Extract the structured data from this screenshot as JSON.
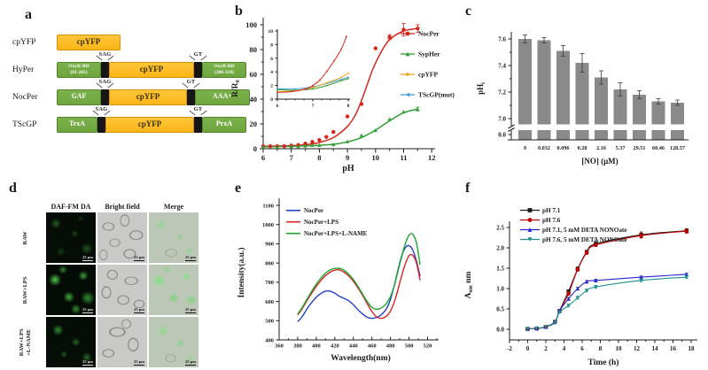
{
  "panels": {
    "a": {
      "letter": "a",
      "colors": {
        "yfp": "#f9b517",
        "yfp_border": "#d89200",
        "domain": "#6fa53f",
        "domain_border": "#55832c",
        "linker": "#161616"
      },
      "rows": [
        {
          "name": "cpYFP",
          "segments": [
            {
              "type": "yfp",
              "text": "cpYFP",
              "w": 72
            }
          ]
        },
        {
          "name": "HyPer",
          "segments": [
            {
              "type": "domain",
              "text": "OxyR-RD\n(81-205)",
              "w": 50,
              "small": true
            },
            {
              "type": "linker",
              "tag": "SAG"
            },
            {
              "type": "yfp",
              "text": "cpYFP",
              "w": 96
            },
            {
              "type": "linker",
              "tag": "GT"
            },
            {
              "type": "domain",
              "text": "OxyR-RD\n(206-310)",
              "w": 50,
              "small": true
            }
          ]
        },
        {
          "name": "NocPer",
          "segments": [
            {
              "type": "domain",
              "text": "GAF",
              "w": 50
            },
            {
              "type": "linker",
              "tag": "SAG"
            },
            {
              "type": "yfp",
              "text": "cpYFP",
              "w": 88
            },
            {
              "type": "linker",
              "tag": "GT"
            },
            {
              "type": "domain",
              "text": "AAA+",
              "w": 62
            }
          ]
        },
        {
          "name": "TScGP",
          "segments": [
            {
              "type": "domain",
              "text": "TrxA",
              "w": 46
            },
            {
              "type": "linker",
              "tag": "SAG"
            },
            {
              "type": "yfp",
              "text": "cpYFP",
              "w": 100
            },
            {
              "type": "linker",
              "tag": "GT"
            },
            {
              "type": "domain",
              "text": "PrxA",
              "w": 50
            }
          ]
        }
      ]
    },
    "b": {
      "letter": "b"
    },
    "c": {
      "letter": "c"
    },
    "d": {
      "letter": "d",
      "col_headers": [
        "DAF-FM DA",
        "Bright field",
        "Merge"
      ],
      "rows": [
        {
          "label": "RAW"
        },
        {
          "label": "RAW+LPS"
        },
        {
          "label": "RAW+LPS\n+L-NAME"
        }
      ],
      "scale_label": "25 μm"
    },
    "e": {
      "letter": "e"
    },
    "f": {
      "letter": "f"
    }
  },
  "chart_data": [
    {
      "id": "b",
      "type": "scatter",
      "xlabel": "pH",
      "ylabel": {
        "pre": "R/R",
        "sub": "0",
        "post": ""
      },
      "xlim": [
        6,
        12
      ],
      "ylim": [
        0,
        100
      ],
      "xticks": [
        6,
        7,
        8,
        9,
        10,
        11,
        12
      ],
      "yticks": [
        0,
        20,
        40,
        60,
        80,
        100
      ],
      "legend_position": "right-outside",
      "series": [
        {
          "name": "NocPer",
          "color": "#d6271d",
          "marker": "circle",
          "x": [
            6,
            6.25,
            6.5,
            6.75,
            7,
            7.25,
            7.5,
            7.75,
            8,
            8.25,
            8.5,
            9,
            9.5,
            10,
            10.5,
            11,
            11.5
          ],
          "y": [
            2,
            2,
            2,
            2,
            2.5,
            3,
            4.2,
            5.5,
            7,
            9.5,
            13.5,
            26,
            36,
            81,
            90,
            96,
            97
          ],
          "yerr": [
            0,
            0,
            0,
            0,
            0,
            0,
            0,
            0,
            0,
            0,
            0,
            0,
            0,
            0,
            2,
            5,
            3
          ],
          "fit": [
            [
              6,
              2
            ],
            [
              7,
              2.4
            ],
            [
              7.5,
              3.2
            ],
            [
              8,
              5
            ],
            [
              8.5,
              9
            ],
            [
              9,
              18
            ],
            [
              9.3,
              28
            ],
            [
              9.6,
              45
            ],
            [
              9.9,
              64
            ],
            [
              10.2,
              78
            ],
            [
              10.5,
              88
            ],
            [
              11,
              95
            ],
            [
              11.5,
              97
            ]
          ]
        },
        {
          "name": "SypHer",
          "color": "#2f9e33",
          "marker": "triangle-up",
          "x": [
            6,
            6.5,
            7,
            7.25,
            7.5,
            7.75,
            8,
            8.5,
            9,
            9.5,
            10,
            10.5,
            11,
            11.5
          ],
          "y": [
            1.5,
            1.5,
            2,
            2,
            2.5,
            3,
            3,
            3.5,
            6,
            11,
            15,
            24,
            30,
            32
          ],
          "yerr": [
            0,
            0,
            0,
            0,
            0,
            0,
            0,
            0,
            0,
            0,
            0,
            0,
            0,
            1.5
          ],
          "fit": [
            [
              6,
              1.5
            ],
            [
              7,
              2
            ],
            [
              8,
              2.8
            ],
            [
              8.5,
              3.6
            ],
            [
              9,
              5.5
            ],
            [
              9.5,
              9
            ],
            [
              10,
              15
            ],
            [
              10.5,
              22.5
            ],
            [
              11,
              29
            ],
            [
              11.5,
              32
            ]
          ]
        },
        {
          "name": "cpYFP",
          "color": "#efa31d",
          "marker": "diamond",
          "x": [],
          "y": [],
          "yerr": [],
          "fit": []
        },
        {
          "name": "TScGP(mut)",
          "color": "#3f9fd8",
          "marker": "triangle-left",
          "x": [],
          "y": [],
          "yerr": [],
          "fit": []
        }
      ],
      "inset": {
        "xlim": [
          6,
          8
        ],
        "ylim": [
          0,
          10
        ],
        "xticks": [
          6,
          7,
          8
        ],
        "yticks": [
          0,
          2,
          4,
          6,
          8,
          10
        ],
        "series": [
          {
            "color": "#d6271d",
            "points": [
              [
                6,
                1
              ],
              [
                6.4,
                1.1
              ],
              [
                6.8,
                1.5
              ],
              [
                7,
                2
              ],
              [
                7.2,
                2.8
              ],
              [
                7.4,
                4.1
              ],
              [
                7.6,
                5.6
              ],
              [
                7.8,
                7.3
              ],
              [
                7.95,
                9.2
              ]
            ]
          },
          {
            "color": "#efa31d",
            "points": [
              [
                6,
                1.1
              ],
              [
                6.5,
                1.2
              ],
              [
                7,
                1.7
              ],
              [
                7.4,
                2.4
              ],
              [
                7.8,
                3.2
              ],
              [
                8,
                3.8
              ]
            ]
          },
          {
            "color": "#2f9e33",
            "points": [
              [
                6,
                1.4
              ],
              [
                6.5,
                1.3
              ],
              [
                7,
                1.5
              ],
              [
                7.4,
                2.0
              ],
              [
                7.8,
                2.7
              ],
              [
                8,
                3.0
              ]
            ]
          },
          {
            "color": "#3f9fd8",
            "points": [
              [
                6,
                1.5
              ],
              [
                6.5,
                1.5
              ],
              [
                7,
                1.8
              ],
              [
                7.4,
                2.3
              ],
              [
                7.8,
                2.9
              ],
              [
                8,
                3.2
              ]
            ]
          }
        ]
      }
    },
    {
      "id": "c",
      "type": "bar",
      "xlabel": "[NO] (μM)",
      "ylabel": {
        "pre": "pH",
        "sub": "i",
        "post": ""
      },
      "categories": [
        "0",
        "0.032",
        "0.096",
        "0.28",
        "2.16",
        "5.37",
        "29.51",
        "60.46",
        "128.57"
      ],
      "values": [
        7.6,
        7.59,
        7.51,
        7.42,
        7.31,
        7.22,
        7.18,
        7.13,
        7.12
      ],
      "errors": [
        0.03,
        0.02,
        0.04,
        0.07,
        0.05,
        0.05,
        0.03,
        0.02,
        0.02
      ],
      "bar_color": "#8a8a8a",
      "yticks": [
        7.0,
        7.2,
        7.4,
        7.6
      ],
      "ybreak_label": "0.0",
      "axis_break": true
    },
    {
      "id": "e",
      "type": "line",
      "xlabel": "Wavelength(nm)",
      "ylabel": "Intensity(a.u.)",
      "xlim": [
        360,
        530
      ],
      "ylim": [
        400,
        1100
      ],
      "xticks": [
        360,
        380,
        400,
        420,
        440,
        460,
        480,
        500,
        520
      ],
      "yticks": [
        400,
        500,
        600,
        700,
        800,
        900,
        1000,
        1100
      ],
      "x_start": 380,
      "x_step": 4,
      "legend_position": "top-left",
      "series": [
        {
          "name": "NocPer",
          "color": "#2340c8",
          "y": [
            495,
            515,
            545,
            575,
            600,
            622,
            638,
            650,
            655,
            652,
            643,
            630,
            620,
            612,
            600,
            583,
            562,
            543,
            527,
            516,
            512,
            515,
            524,
            540,
            565,
            610,
            680,
            762,
            835,
            880,
            890,
            868,
            810,
            730
          ]
        },
        {
          "name": "NocPer+LPS",
          "color": "#d92121",
          "y": [
            530,
            556,
            588,
            620,
            650,
            678,
            703,
            725,
            742,
            755,
            763,
            765,
            758,
            745,
            728,
            705,
            678,
            648,
            615,
            580,
            548,
            524,
            513,
            514,
            525,
            550,
            595,
            660,
            732,
            795,
            838,
            840,
            800,
            710
          ]
        },
        {
          "name": "NocPer+LPS+L-NAME",
          "color": "#1ea832",
          "y": [
            535,
            562,
            595,
            628,
            660,
            690,
            716,
            738,
            755,
            766,
            772,
            773,
            768,
            755,
            737,
            714,
            686,
            655,
            622,
            592,
            570,
            560,
            562,
            572,
            592,
            625,
            680,
            755,
            832,
            900,
            945,
            950,
            905,
            790
          ]
        }
      ]
    },
    {
      "id": "f",
      "type": "scatter-line",
      "xlabel": "Time (h)",
      "ylabel": {
        "pre": "A",
        "sub": "600",
        "post": " nm"
      },
      "xlim": [
        -2,
        18
      ],
      "ylim": [
        0,
        2.5
      ],
      "xticks": [
        -2,
        0,
        2,
        4,
        6,
        8,
        10,
        12,
        14,
        16,
        18
      ],
      "yticks": [
        "0.0",
        "0.5",
        "1.0",
        "1.5",
        "2.0",
        "2.5"
      ],
      "x": [
        0,
        1,
        2,
        3,
        3.5,
        4.5,
        5.5,
        6.5,
        7.5,
        12.5,
        17.5
      ],
      "legend_position": "top-left",
      "series": [
        {
          "name": "pH 7.1",
          "color": "#1a1a1a",
          "marker": "square",
          "y": [
            0.01,
            0.02,
            0.06,
            0.18,
            0.45,
            0.93,
            1.48,
            1.9,
            2.1,
            2.32,
            2.42
          ],
          "yerr": [
            0,
            0,
            0,
            0.02,
            0.03,
            0.04,
            0.05,
            0.04,
            0.05,
            0.07,
            0.05
          ]
        },
        {
          "name": "pH 7.6",
          "color": "#c00000",
          "marker": "circle",
          "y": [
            0.01,
            0.02,
            0.06,
            0.17,
            0.44,
            0.88,
            1.47,
            1.88,
            2.07,
            2.3,
            2.41
          ],
          "yerr": [
            0,
            0,
            0,
            0.02,
            0.03,
            0.04,
            0.04,
            0.04,
            0.04,
            0.06,
            0.05
          ]
        },
        {
          "name": "pH 7.1, 5 mM DETA NONOate",
          "color": "#2525cf",
          "marker": "triangle-up",
          "y": [
            0.01,
            0.02,
            0.06,
            0.18,
            0.45,
            0.75,
            1.0,
            1.17,
            1.2,
            1.28,
            1.35
          ],
          "yerr": [
            0,
            0,
            0,
            0.02,
            0.03,
            0.03,
            0.03,
            0.03,
            0.03,
            0.03,
            0.03
          ]
        },
        {
          "name": "pH 7.6, 5 mM DETA NONOate",
          "color": "#1f8f8f",
          "marker": "triangle-down",
          "y": [
            0.01,
            0.02,
            0.06,
            0.16,
            0.42,
            0.58,
            0.77,
            0.95,
            1.04,
            1.2,
            1.28
          ],
          "yerr": [
            0,
            0,
            0,
            0.02,
            0.02,
            0.03,
            0.03,
            0.03,
            0.03,
            0.03,
            0.03
          ]
        }
      ]
    }
  ]
}
